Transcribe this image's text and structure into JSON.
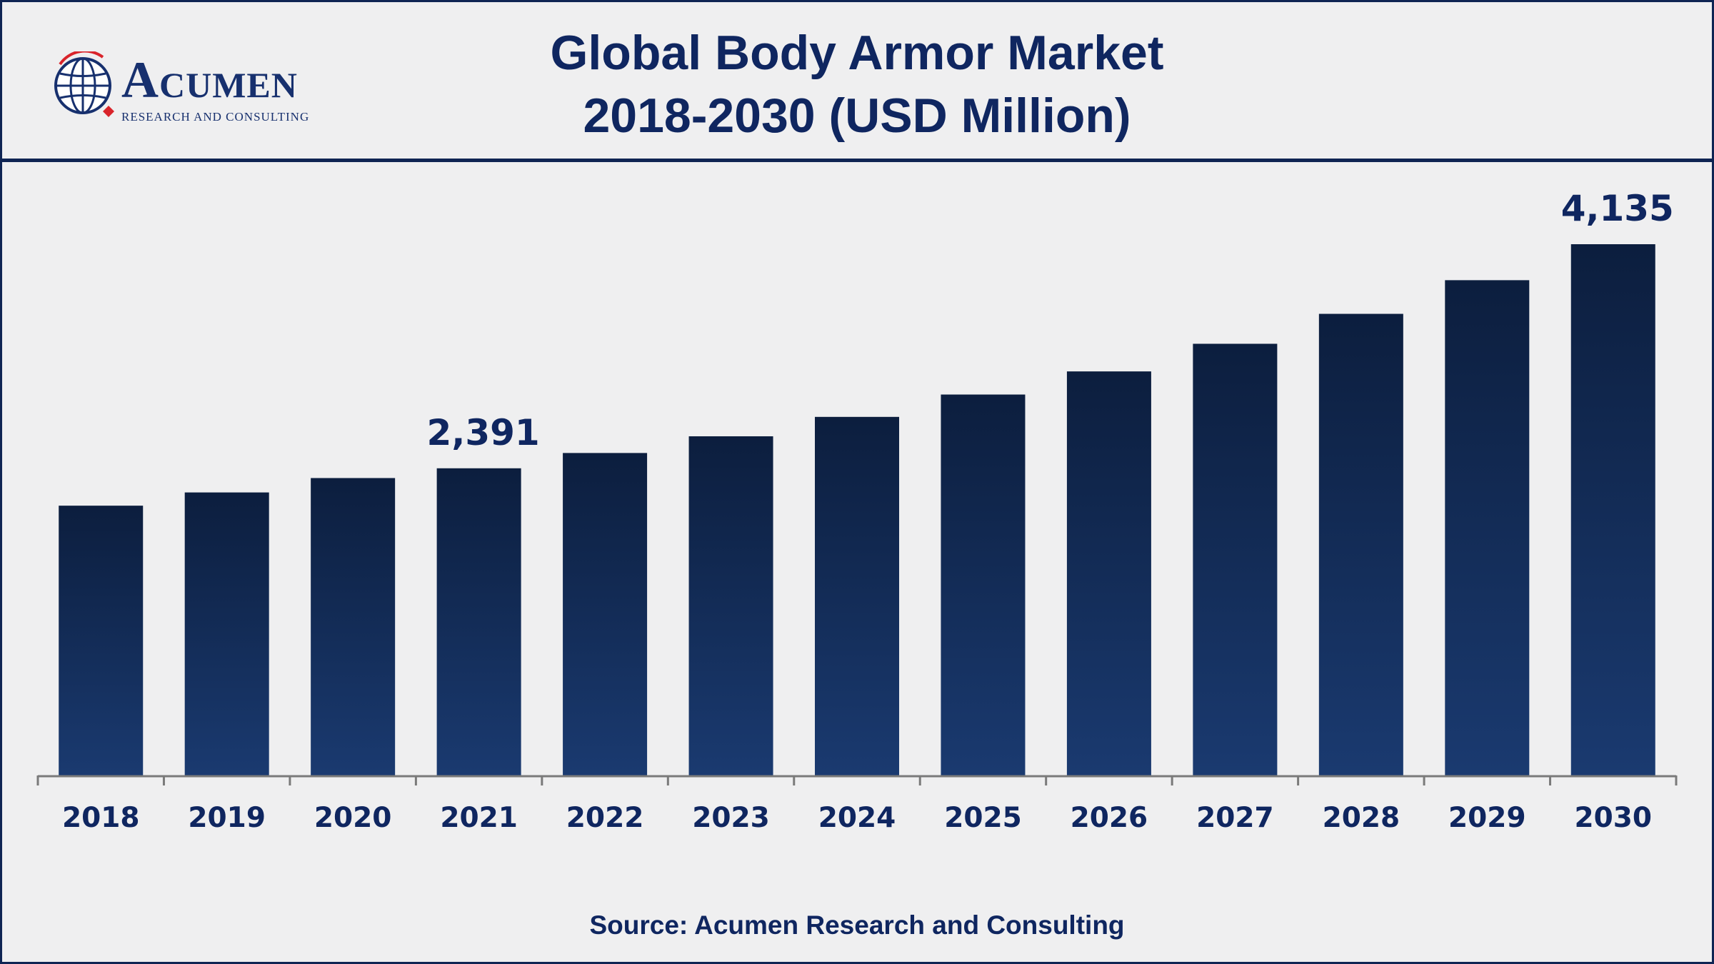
{
  "header": {
    "title_line1": "Global Body Armor Market",
    "title_line2": "2018-2030 (USD Million)"
  },
  "logo": {
    "word": "Acumen",
    "subtitle": "RESEARCH AND CONSULTING"
  },
  "source": "Source: Acumen Research and Consulting",
  "colors": {
    "background": "#efeff0",
    "navy": "#0f2453",
    "bar_top": "#0c1e3e",
    "bar_bottom": "#1a3a70",
    "axis": "#7a7a7a",
    "logo_red": "#d9242b"
  },
  "chart_data": {
    "type": "bar",
    "title": "Global Body Armor Market 2018-2030 (USD Million)",
    "categories": [
      "2018",
      "2019",
      "2020",
      "2021",
      "2022",
      "2023",
      "2024",
      "2025",
      "2026",
      "2027",
      "2028",
      "2029",
      "2030"
    ],
    "values": [
      2100,
      2203,
      2315,
      2391,
      2510,
      2640,
      2791,
      2965,
      3145,
      3360,
      3593,
      3855,
      4135
    ],
    "labeled_points": [
      {
        "category": "2021",
        "label": "2,391"
      },
      {
        "category": "2030",
        "label": "4,135"
      }
    ],
    "xlabel": "",
    "ylabel": "",
    "ylim": [
      0,
      4135
    ],
    "grid": false,
    "legend": "none"
  }
}
